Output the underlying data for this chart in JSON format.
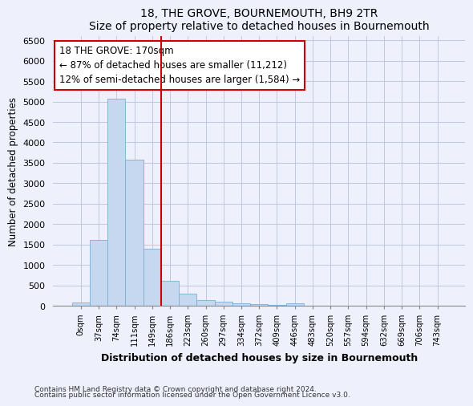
{
  "title": "18, THE GROVE, BOURNEMOUTH, BH9 2TR",
  "subtitle": "Size of property relative to detached houses in Bournemouth",
  "xlabel": "Distribution of detached houses by size in Bournemouth",
  "ylabel": "Number of detached properties",
  "footer_line1": "Contains HM Land Registry data © Crown copyright and database right 2024.",
  "footer_line2": "Contains public sector information licensed under the Open Government Licence v3.0.",
  "bar_labels": [
    "0sqm",
    "37sqm",
    "74sqm",
    "111sqm",
    "149sqm",
    "186sqm",
    "223sqm",
    "260sqm",
    "297sqm",
    "334sqm",
    "372sqm",
    "409sqm",
    "446sqm",
    "483sqm",
    "520sqm",
    "557sqm",
    "594sqm",
    "632sqm",
    "669sqm",
    "706sqm",
    "743sqm"
  ],
  "bar_values": [
    75,
    1620,
    5060,
    3580,
    1400,
    620,
    290,
    145,
    100,
    55,
    35,
    20,
    55,
    0,
    0,
    0,
    0,
    0,
    0,
    0,
    0
  ],
  "bar_color": "#c5d8f0",
  "bar_edge_color": "#7aafd4",
  "ylim": [
    0,
    6600
  ],
  "yticks": [
    0,
    500,
    1000,
    1500,
    2000,
    2500,
    3000,
    3500,
    4000,
    4500,
    5000,
    5500,
    6000,
    6500
  ],
  "vline_x": 4.5,
  "vline_color": "#cc0000",
  "annotation_text_line1": "18 THE GROVE: 170sqm",
  "annotation_text_line2": "← 87% of detached houses are smaller (11,212)",
  "annotation_text_line3": "12% of semi-detached houses are larger (1,584) →",
  "bg_color": "#eef1fb",
  "grid_color": "#c0c8e0"
}
